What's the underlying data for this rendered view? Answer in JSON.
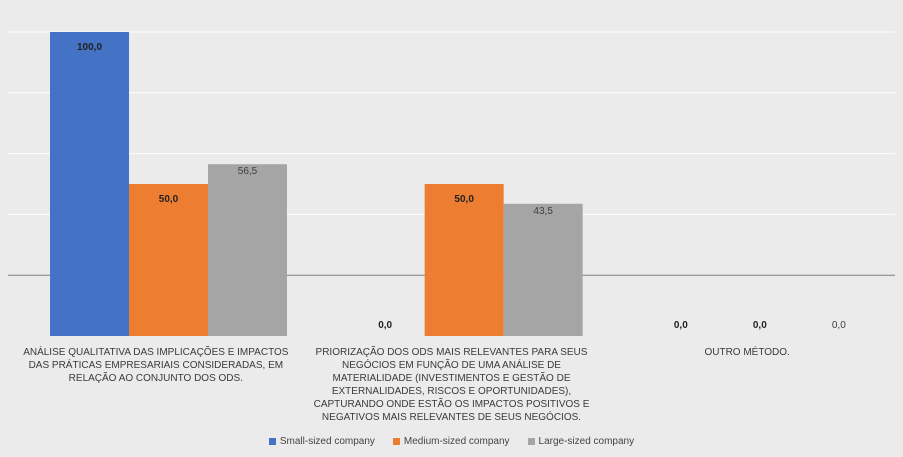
{
  "chart_data": {
    "type": "bar",
    "categories": [
      "ANÁLISE QUALITATIVA DAS IMPLICAÇÕES E IMPACTOS DAS PRÁTICAS EMPRESARIAIS CONSIDERADAS, EM RELAÇÃO AO CONJUNTO DOS ODS.",
      "PRIORIZAÇÃO DOS ODS MAIS RELEVANTES PARA SEUS NEGÓCIOS EM FUNÇÃO DE UMA ANÁLISE DE MATERIALIDADE (INVESTIMENTOS E GESTÃO DE EXTERNALIDADES, RISCOS E OPORTUNIDADES), CAPTURANDO ONDE ESTÃO OS IMPACTOS POSITIVOS E NEGATIVOS MAIS RELEVANTES DE SEUS NEGÓCIOS.",
      "OUTRO MÉTODO."
    ],
    "series": [
      {
        "name": "Small-sized company",
        "values": [
          100.0,
          0.0,
          0.0
        ],
        "color": "#4472c4"
      },
      {
        "name": "Medium-sized company",
        "values": [
          50.0,
          50.0,
          0.0
        ],
        "color": "#ed7d31"
      },
      {
        "name": "Large-sized company",
        "values": [
          56.5,
          43.5,
          0.0
        ],
        "color": "#a5a5a5"
      }
    ],
    "data_labels": [
      [
        "100,0",
        "0,0",
        "0,0"
      ],
      [
        "50,0",
        "50,0",
        "0,0"
      ],
      [
        "56,5",
        "43,5",
        "0,0"
      ]
    ],
    "ylim": [
      0,
      100
    ],
    "grid": true,
    "legend_position": "bottom",
    "title": "",
    "xlabel": "",
    "ylabel": ""
  }
}
